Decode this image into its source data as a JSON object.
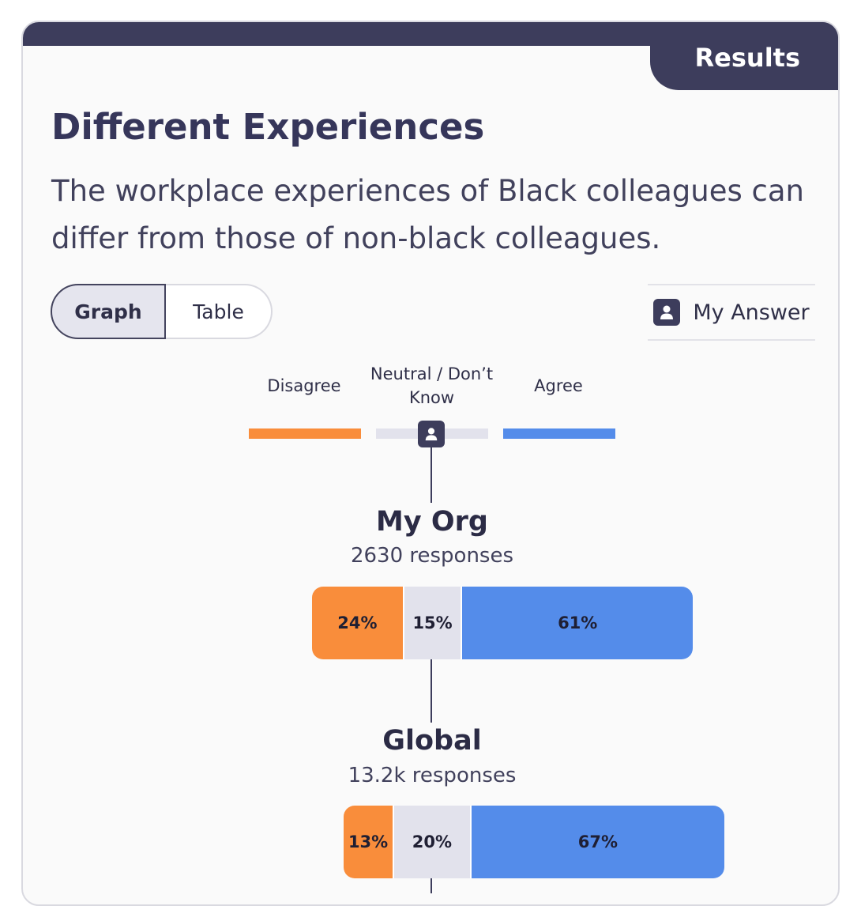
{
  "header": {
    "tab_label": "Results"
  },
  "title": "Different Experiences",
  "subtitle": "The workplace experiences of Black colleagues can differ from those of non-black colleagues.",
  "view_toggle": {
    "options": [
      "Graph",
      "Table"
    ],
    "selected": "Graph"
  },
  "my_answer": {
    "label": "My Answer",
    "icon": "person-icon",
    "answer": "Neutral / Don’t Know"
  },
  "colors": {
    "disagree": "#f98d3b",
    "neutral": "#e2e2ec",
    "agree": "#548cea",
    "accent": "#3d3d5c"
  },
  "chart_data": {
    "type": "bar",
    "stacked": true,
    "orientation": "horizontal",
    "unit": "%",
    "legend": [
      "Disagree",
      "Neutral / Don’t Know",
      "Agree"
    ],
    "groups": [
      {
        "name": "My Org",
        "responses": "2630 responses",
        "values": [
          24,
          15,
          61
        ],
        "labels": [
          "24%",
          "15%",
          "61%"
        ]
      },
      {
        "name": "Global",
        "responses": "13.2k responses",
        "values": [
          13,
          20,
          67
        ],
        "labels": [
          "13%",
          "20%",
          "67%"
        ]
      }
    ]
  }
}
